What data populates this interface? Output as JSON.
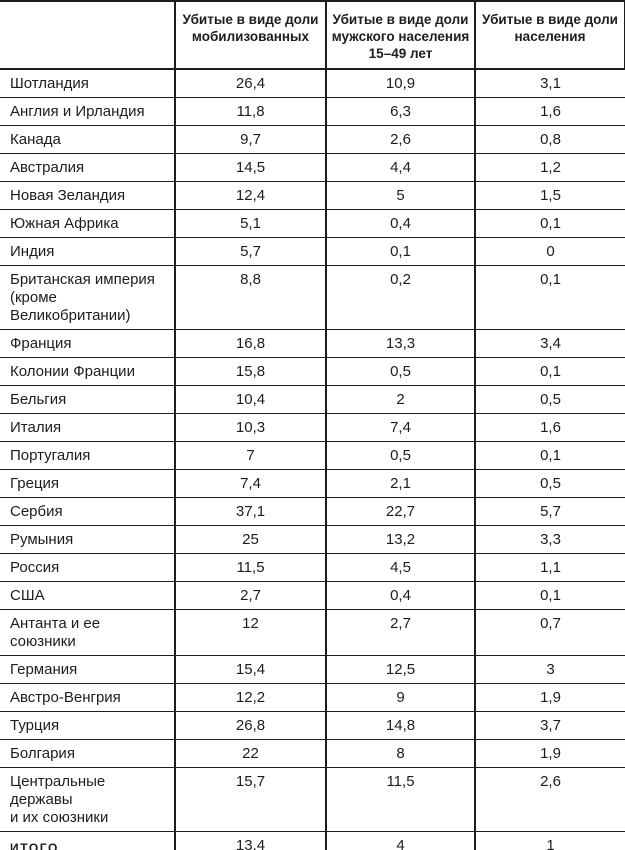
{
  "page": {
    "background_color": "#ffffff",
    "text_color": "#1d1d1d",
    "line_color": "#1d1d1d"
  },
  "chart_data": {
    "type": "table",
    "title": "",
    "grid": "horizontal lines full width; vertical lines only between columns; header boxed, no outer left border",
    "columns": [
      "",
      "Убитые в виде доли мобилизованных",
      "Убитые в виде доли мужского населения 15–49 лет",
      "Убитые в виде доли населения"
    ],
    "rows": [
      {
        "label": "Шотландия",
        "values": [
          "26,4",
          "10,9",
          "3,1"
        ]
      },
      {
        "label": "Англия и Ирландия",
        "values": [
          "11,8",
          "6,3",
          "1,6"
        ]
      },
      {
        "label": "Канада",
        "values": [
          "9,7",
          "2,6",
          "0,8"
        ]
      },
      {
        "label": "Австралия",
        "values": [
          "14,5",
          "4,4",
          "1,2"
        ]
      },
      {
        "label": "Новая Зеландия",
        "values": [
          "12,4",
          "5",
          "1,5"
        ]
      },
      {
        "label": "Южная Африка",
        "values": [
          "5,1",
          "0,4",
          "0,1"
        ]
      },
      {
        "label": "Индия",
        "values": [
          "5,7",
          "0,1",
          "0"
        ]
      },
      {
        "label": "Британская империя\n(кроме Великобритании)",
        "values": [
          "8,8",
          "0,2",
          "0,1"
        ]
      },
      {
        "label": "Франция",
        "values": [
          "16,8",
          "13,3",
          "3,4"
        ]
      },
      {
        "label": "Колонии Франции",
        "values": [
          "15,8",
          "0,5",
          "0,1"
        ]
      },
      {
        "label": "Бельгия",
        "values": [
          "10,4",
          "2",
          "0,5"
        ]
      },
      {
        "label": "Италия",
        "values": [
          "10,3",
          "7,4",
          "1,6"
        ]
      },
      {
        "label": "Португалия",
        "values": [
          "7",
          "0,5",
          "0,1"
        ]
      },
      {
        "label": "Греция",
        "values": [
          "7,4",
          "2,1",
          "0,5"
        ]
      },
      {
        "label": "Сербия",
        "values": [
          "37,1",
          "22,7",
          "5,7"
        ]
      },
      {
        "label": "Румыния",
        "values": [
          "25",
          "13,2",
          "3,3"
        ]
      },
      {
        "label": "Россия",
        "values": [
          "11,5",
          "4,5",
          "1,1"
        ]
      },
      {
        "label": "США",
        "values": [
          "2,7",
          "0,4",
          "0,1"
        ]
      },
      {
        "label": "Антанта и ее союзники",
        "values": [
          "12",
          "2,7",
          "0,7"
        ]
      },
      {
        "label": "Германия",
        "values": [
          "15,4",
          "12,5",
          "3"
        ]
      },
      {
        "label": "Австро-Венгрия",
        "values": [
          "12,2",
          "9",
          "1,9"
        ]
      },
      {
        "label": "Турция",
        "values": [
          "26,8",
          "14,8",
          "3,7"
        ]
      },
      {
        "label": "Болгария",
        "values": [
          "22",
          "8",
          "1,9"
        ]
      },
      {
        "label": "Центральные державы\nи их союзники",
        "values": [
          "15,7",
          "11,5",
          "2,6"
        ]
      },
      {
        "label": "ИТОГО",
        "values": [
          "13,4",
          "4",
          "1"
        ],
        "bold": true
      }
    ]
  }
}
